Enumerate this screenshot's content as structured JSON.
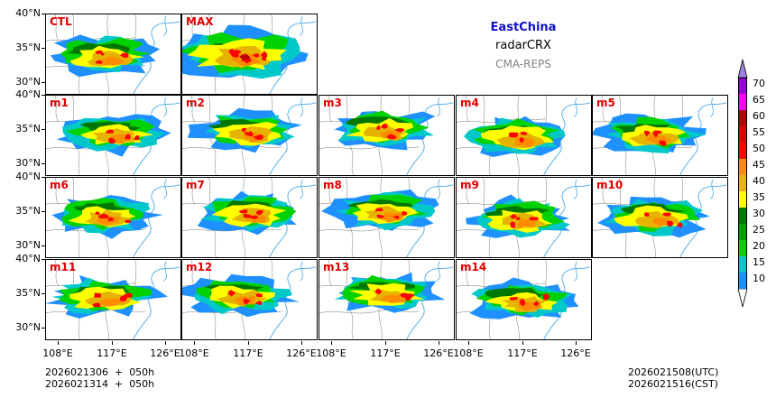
{
  "header": {
    "region": "EastChina",
    "variable": "radarCRX",
    "system": "CMA-REPS"
  },
  "panels": [
    {
      "label": "CTL"
    },
    {
      "label": "MAX"
    },
    {
      "label": "m1"
    },
    {
      "label": "m2"
    },
    {
      "label": "m3"
    },
    {
      "label": "m4"
    },
    {
      "label": "m5"
    },
    {
      "label": "m6"
    },
    {
      "label": "m7"
    },
    {
      "label": "m8"
    },
    {
      "label": "m9"
    },
    {
      "label": "m10"
    },
    {
      "label": "m11"
    },
    {
      "label": "m12"
    },
    {
      "label": "m13"
    },
    {
      "label": "m14"
    }
  ],
  "axes": {
    "lat_labels": [
      "40°N",
      "35°N",
      "30°N"
    ],
    "lon_labels": [
      "108°E",
      "117°E",
      "126°E"
    ]
  },
  "footer": {
    "init_line1": "2026021306  +  050h",
    "init_line2": "2026021314  +  050h",
    "valid_utc": "2026021508(UTC)",
    "valid_cst": "2026021516(CST)"
  },
  "colorbar": {
    "levels": [
      "10",
      "15",
      "20",
      "25",
      "30",
      "35",
      "40",
      "45",
      "50",
      "55",
      "60",
      "65",
      "70"
    ],
    "colors": [
      "#1e90ff",
      "#00c8c8",
      "#00d200",
      "#00a000",
      "#007800",
      "#ffff00",
      "#e6b400",
      "#ff8c00",
      "#ff0000",
      "#dc0000",
      "#b40000",
      "#ff00ff",
      "#9400d3"
    ],
    "under_color": "#ffffff",
    "over_color": "#a080e0"
  }
}
